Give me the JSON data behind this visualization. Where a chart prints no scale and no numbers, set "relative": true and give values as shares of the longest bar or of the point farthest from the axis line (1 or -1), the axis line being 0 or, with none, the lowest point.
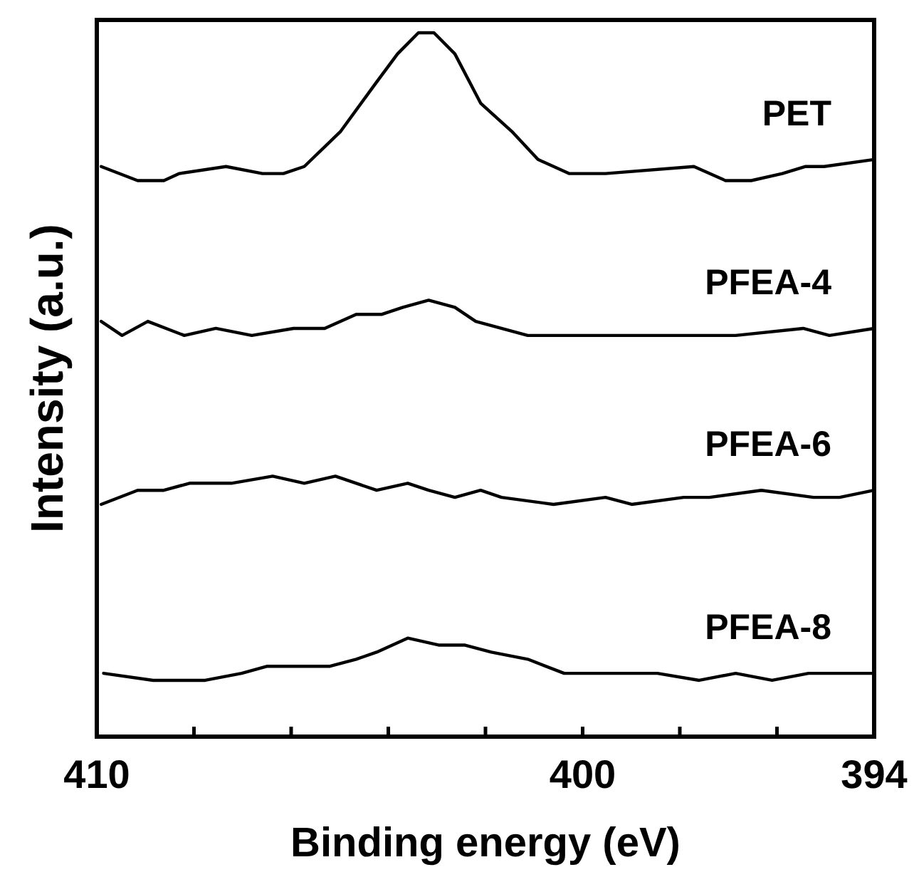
{
  "chart_data": {
    "type": "line",
    "xlabel": "Binding energy (eV)",
    "ylabel": "Intensity (a.u.)",
    "relative": true,
    "xlim": [
      410,
      394
    ],
    "xticks": [
      410,
      {
        "value": 408,
        "label": null
      },
      {
        "value": 406,
        "label": null
      },
      {
        "value": 404,
        "label": null
      },
      {
        "value": 402,
        "label": null
      },
      400,
      {
        "value": 398,
        "label": null
      },
      {
        "value": 396,
        "label": null
      },
      394
    ],
    "tick_labels": "x",
    "grid": false,
    "marker": "none",
    "line_style": "solid",
    "series": [
      {
        "name": "PET",
        "color": "#000000",
        "x": [
          409.91,
          409.16,
          408.62,
          408.3,
          407.34,
          406.59,
          406.16,
          405.73,
          404.98,
          404.24,
          403.81,
          403.38,
          403.06,
          402.63,
          402.1,
          401.46,
          400.92,
          400.28,
          399.53,
          397.71,
          397.06,
          396.53,
          395.89,
          395.41,
          395.03,
          394
        ],
        "values": [
          0.81,
          0.79,
          0.79,
          0.8,
          0.81,
          0.8,
          0.8,
          0.81,
          0.86,
          0.93,
          0.97,
          1,
          1,
          0.97,
          0.9,
          0.86,
          0.82,
          0.8,
          0.8,
          0.81,
          0.79,
          0.79,
          0.8,
          0.81,
          0.81,
          0.82
        ]
      },
      {
        "name": "PFEA-4",
        "color": "#000000",
        "x": [
          409.91,
          409.48,
          408.95,
          408.2,
          407.55,
          406.81,
          405.95,
          405.31,
          404.66,
          404.13,
          403.7,
          403.17,
          402.63,
          402.2,
          401.13,
          399.53,
          398.46,
          396.85,
          395.46,
          394.92,
          394
        ],
        "values": [
          0.59,
          0.57,
          0.59,
          0.57,
          0.58,
          0.57,
          0.58,
          0.58,
          0.6,
          0.6,
          0.61,
          0.62,
          0.61,
          0.59,
          0.57,
          0.57,
          0.57,
          0.57,
          0.58,
          0.57,
          0.58
        ]
      },
      {
        "name": "PFEA-6",
        "color": "#000000",
        "x": [
          409.91,
          409.16,
          408.62,
          408.09,
          407.23,
          406.38,
          405.73,
          405.09,
          404.24,
          403.6,
          403.17,
          402.63,
          402.1,
          401.67,
          400.6,
          399.53,
          398.99,
          397.92,
          397.39,
          396.32,
          395.25,
          394.71,
          394
        ],
        "values": [
          0.33,
          0.35,
          0.35,
          0.36,
          0.36,
          0.37,
          0.36,
          0.37,
          0.35,
          0.36,
          0.35,
          0.34,
          0.35,
          0.34,
          0.33,
          0.34,
          0.33,
          0.34,
          0.34,
          0.35,
          0.34,
          0.34,
          0.35
        ]
      },
      {
        "name": "PFEA-8",
        "color": "#000000",
        "x": [
          409.86,
          408.84,
          407.77,
          407.02,
          406.49,
          405.73,
          405.2,
          404.66,
          404.24,
          403.6,
          402.95,
          402.42,
          401.88,
          401.13,
          400.38,
          399.53,
          398.46,
          397.6,
          396.85,
          396.1,
          395.35,
          394
        ],
        "values": [
          0.09,
          0.08,
          0.08,
          0.09,
          0.1,
          0.1,
          0.1,
          0.11,
          0.12,
          0.14,
          0.13,
          0.13,
          0.12,
          0.11,
          0.09,
          0.09,
          0.09,
          0.08,
          0.09,
          0.08,
          0.09,
          0.09
        ]
      }
    ]
  }
}
